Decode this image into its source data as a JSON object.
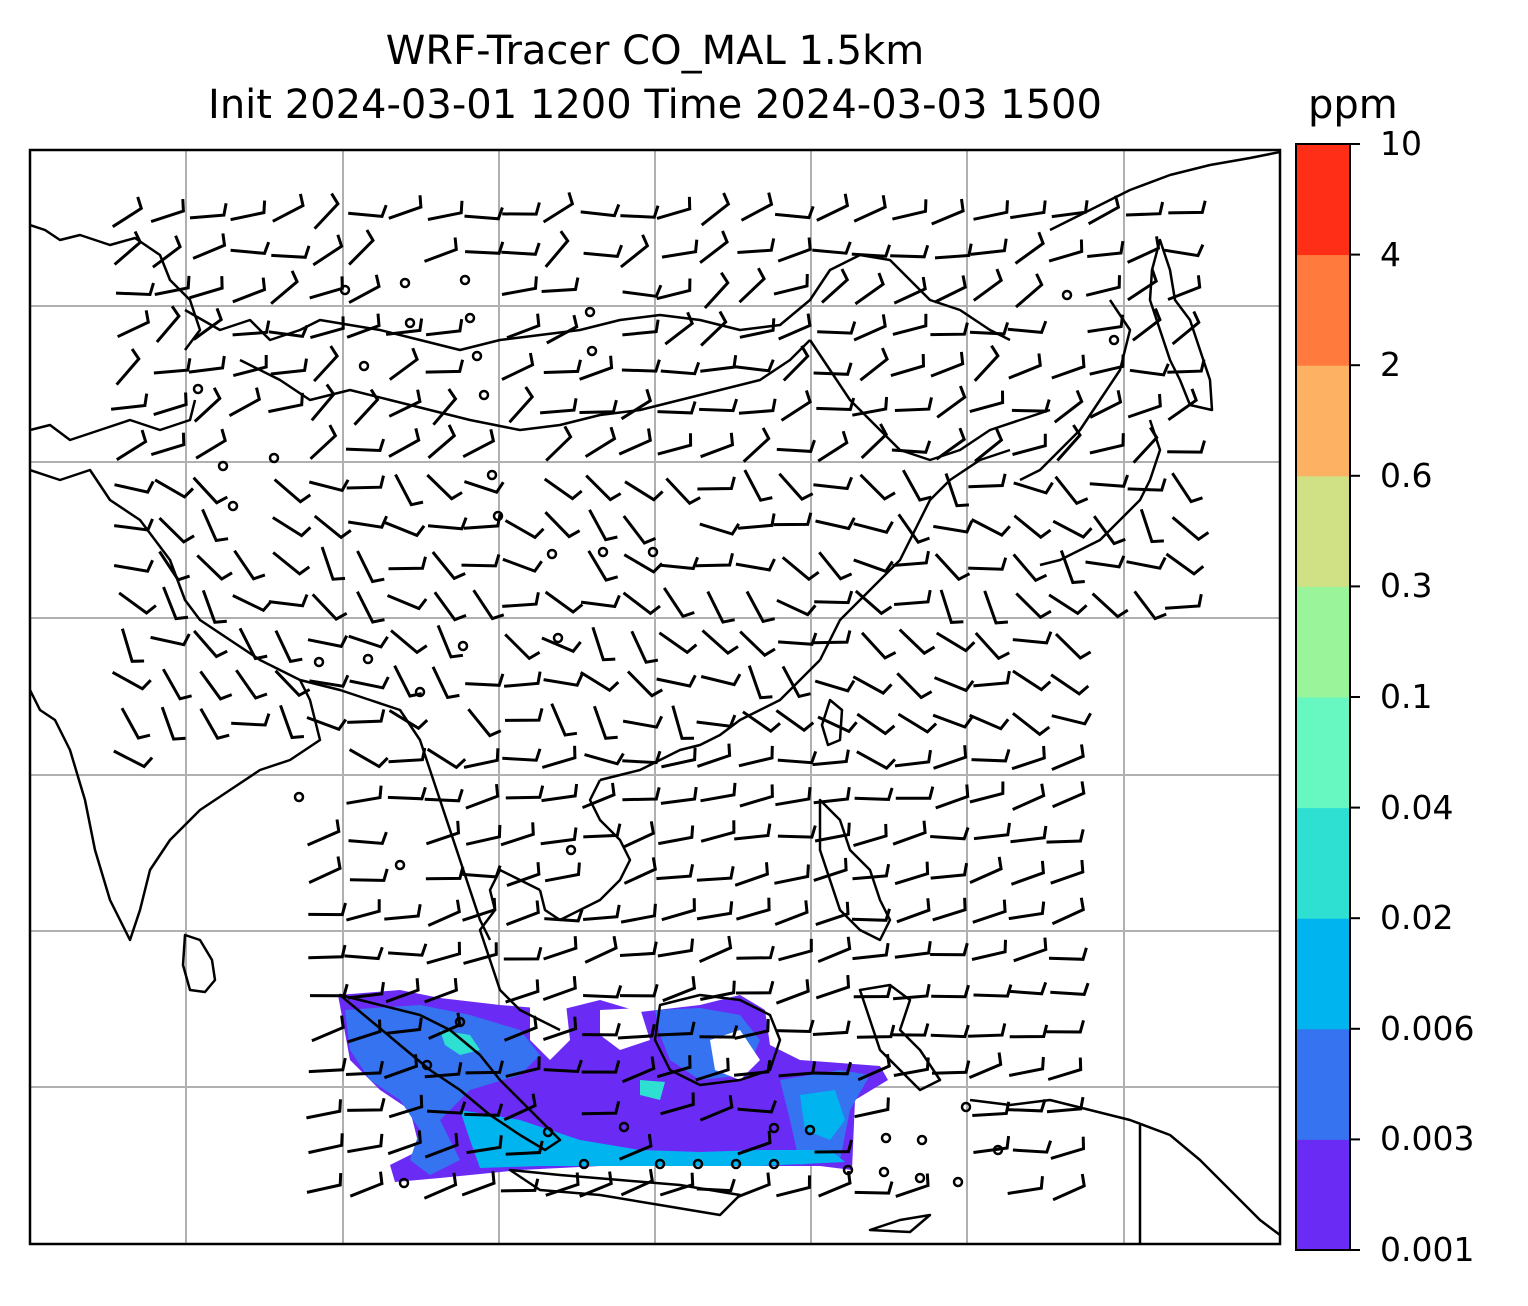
{
  "title": {
    "line1": "WRF-Tracer CO_MAL 1.5km",
    "line2": "Init 2024-03-01 1200 Time 2024-03-03 1500"
  },
  "colorbar": {
    "unit": "ppm",
    "levels": [
      "0.001",
      "0.003",
      "0.006",
      "0.02",
      "0.04",
      "0.1",
      "0.3",
      "0.6",
      "2",
      "4",
      "10"
    ],
    "colors": [
      "#6a2cf5",
      "#3573f0",
      "#00b4ef",
      "#2ee0d2",
      "#66f8c0",
      "#9af59a",
      "#cfe085",
      "#fdb162",
      "#ff7a3c",
      "#ff2e17"
    ]
  },
  "map": {
    "gridlines": true,
    "frame_color": "#000000",
    "grid_color": "#b0b0b0",
    "coastline_color": "#000000",
    "tracer_field_colors": [
      "#6a2cf5",
      "#3573f0",
      "#00b4ef",
      "#2ee0d2"
    ]
  }
}
